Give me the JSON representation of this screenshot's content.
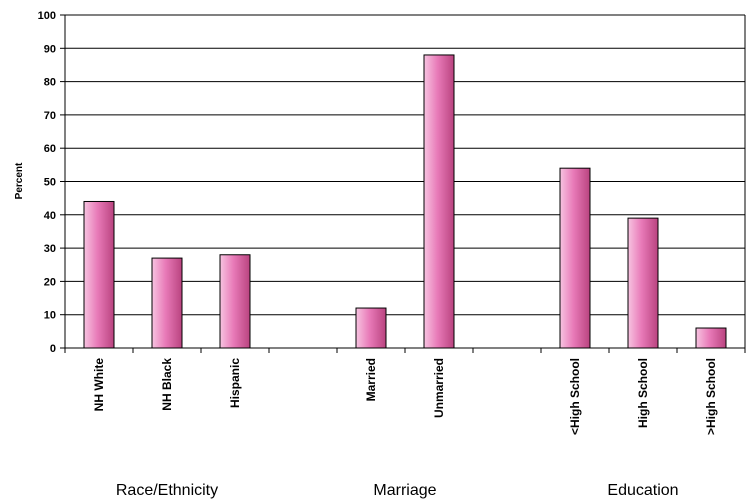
{
  "chart_data": {
    "type": "bar",
    "ylabel": "Percent",
    "ylim": [
      0,
      100
    ],
    "yticks": [
      0,
      10,
      20,
      30,
      40,
      50,
      60,
      70,
      80,
      90,
      100
    ],
    "grid": true,
    "bar_color": "#e87ab8",
    "slots": [
      {
        "label": "NH White",
        "value": 44
      },
      {
        "label": "NH Black",
        "value": 27
      },
      {
        "label": "Hispanic",
        "value": 28
      },
      {
        "label": "",
        "value": null
      },
      {
        "label": "Married",
        "value": 12
      },
      {
        "label": "Unmarried",
        "value": 88
      },
      {
        "label": "",
        "value": null
      },
      {
        "label": "<High School",
        "value": 54
      },
      {
        "label": "High School",
        "value": 39
      },
      {
        "label": ">High School",
        "value": 6
      }
    ],
    "groups": [
      {
        "label": "Race/Ethnicity",
        "slots": [
          0,
          2
        ]
      },
      {
        "label": "Marriage",
        "slots": [
          4,
          5
        ]
      },
      {
        "label": "Education",
        "slots": [
          7,
          9
        ]
      }
    ]
  }
}
